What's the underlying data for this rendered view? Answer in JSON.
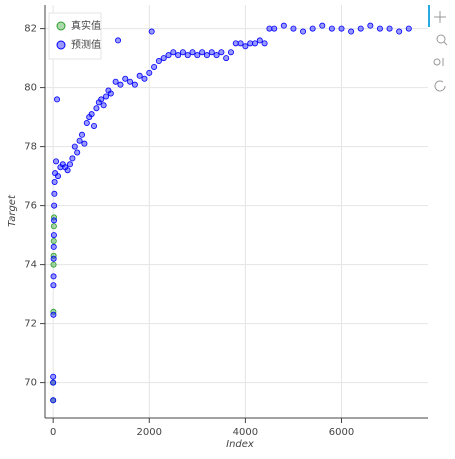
{
  "chart_data": {
    "type": "scatter",
    "x_label": "Index",
    "y_label": "Target",
    "xlim": [
      -170,
      7800
    ],
    "ylim": [
      68.8,
      82.8
    ],
    "xticks": [
      0,
      2000,
      4000,
      6000
    ],
    "yticks": [
      70,
      72,
      74,
      76,
      78,
      80,
      82
    ],
    "grid": true,
    "legend": "top-left",
    "series": [
      {
        "name": "真实值",
        "color": "#2ca02c",
        "x": [
          0,
          0,
          5,
          8,
          10,
          12,
          15,
          18
        ],
        "values": [
          69.4,
          70,
          72.4,
          74,
          74.3,
          74.8,
          75.3,
          75.6
        ]
      },
      {
        "name": "预测值",
        "color": "#0000ff",
        "x": [
          0,
          0,
          0,
          5,
          5,
          8,
          10,
          12,
          15,
          18,
          20,
          25,
          30,
          40,
          60,
          80,
          100,
          150,
          200,
          250,
          300,
          350,
          400,
          450,
          500,
          550,
          600,
          650,
          700,
          750,
          800,
          850,
          900,
          950,
          1000,
          1050,
          1100,
          1150,
          1200,
          1300,
          1350,
          1400,
          1500,
          1600,
          1700,
          1800,
          1900,
          2000,
          2050,
          2100,
          2200,
          2300,
          2400,
          2500,
          2600,
          2700,
          2800,
          2900,
          3000,
          3100,
          3200,
          3300,
          3400,
          3500,
          3600,
          3700,
          3800,
          3900,
          4000,
          4100,
          4200,
          4300,
          4400,
          4500,
          4600,
          4800,
          5000,
          5200,
          5400,
          5600,
          5800,
          6000,
          6200,
          6400,
          6600,
          6800,
          7000,
          7200,
          7400
        ],
        "values": [
          69.4,
          70,
          70.2,
          72.3,
          73.3,
          73.6,
          74.2,
          74.6,
          75,
          75.5,
          76,
          76.4,
          76.8,
          77.1,
          77.5,
          79.6,
          77,
          77.3,
          77.4,
          77.3,
          77.2,
          77.4,
          77.6,
          78,
          77.8,
          78.2,
          78.4,
          78.1,
          78.8,
          79,
          79.1,
          78.7,
          79.3,
          79.5,
          79.6,
          79.4,
          79.7,
          79.9,
          79.8,
          80.2,
          81.6,
          80.1,
          80.3,
          80.2,
          80.1,
          80.4,
          80.3,
          80.5,
          81.9,
          80.7,
          80.9,
          81,
          81.1,
          81.2,
          81.1,
          81.2,
          81.1,
          81.2,
          81.1,
          81.2,
          81.1,
          81.2,
          81.1,
          81.2,
          81,
          81.2,
          81.5,
          81.5,
          81.4,
          81.5,
          81.5,
          81.6,
          81.5,
          82,
          82,
          82.1,
          82,
          81.9,
          82,
          82.1,
          82,
          82,
          81.9,
          82,
          82.1,
          82,
          82,
          81.9,
          82
        ]
      }
    ]
  }
}
